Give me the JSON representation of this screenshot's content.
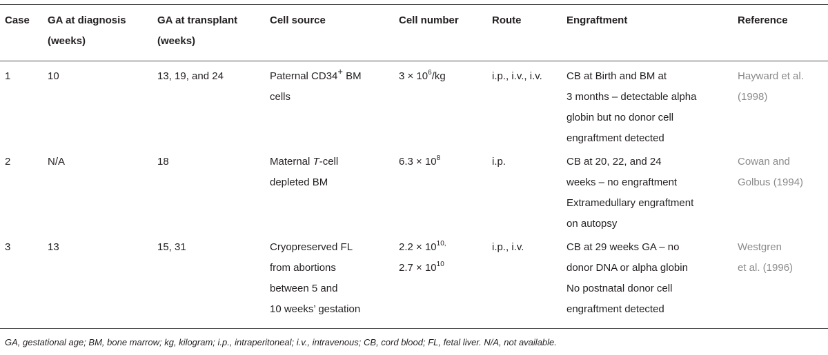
{
  "headers": {
    "case": "Case",
    "ga_diagnosis": [
      "GA at diagnosis",
      "(weeks)"
    ],
    "ga_transplant": [
      "GA at transplant",
      "(weeks)"
    ],
    "cell_source": "Cell source",
    "cell_number": "Cell number",
    "route": "Route",
    "engraftment": "Engraftment",
    "reference": "Reference"
  },
  "rows": [
    {
      "case": "1",
      "ga_diagnosis": "10",
      "ga_transplant": "13, 19, and 24",
      "cell_source": [
        "Paternal CD34",
        "+",
        " BM",
        "cells"
      ],
      "cell_number": [
        "3 × 10",
        "6",
        "/kg"
      ],
      "route": "i.p., i.v., i.v.",
      "engraftment": [
        "CB at Birth and BM at",
        "3 months – detectable alpha",
        "globin but no donor cell",
        "engraftment detected"
      ],
      "reference": [
        "Hayward et al.",
        "(1998)"
      ]
    },
    {
      "case": "2",
      "ga_diagnosis": "N/A",
      "ga_transplant": "18",
      "cell_source": [
        "Maternal ",
        "T",
        "-cell",
        "depleted BM"
      ],
      "cell_number": [
        "6.3 × 10",
        "8"
      ],
      "route": "i.p.",
      "engraftment": [
        "CB at 20, 22, and 24",
        "weeks – no engraftment",
        "Extramedullary engraftment",
        "on autopsy"
      ],
      "reference": [
        "Cowan and",
        "Golbus (1994)"
      ]
    },
    {
      "case": "3",
      "ga_diagnosis": "13",
      "ga_transplant": "15, 31",
      "cell_source": [
        "Cryopreserved FL",
        "from abortions",
        "between 5 and",
        "10 weeks’ gestation"
      ],
      "cell_number": [
        "2.2 × 10",
        "10,",
        "2.7 × 10",
        "10"
      ],
      "route": "i.p., i.v.",
      "engraftment": [
        "CB at 29 weeks GA – no",
        "donor DNA or alpha globin",
        "No postnatal donor cell",
        "engraftment detected"
      ],
      "reference": [
        "Westgren",
        "et al. (1996)"
      ]
    }
  ],
  "footnote": "GA, gestational age; BM, bone marrow; kg, kilogram; i.p., intraperitoneal; i.v., intravenous; CB, cord blood; FL, fetal liver. N/A, not available."
}
